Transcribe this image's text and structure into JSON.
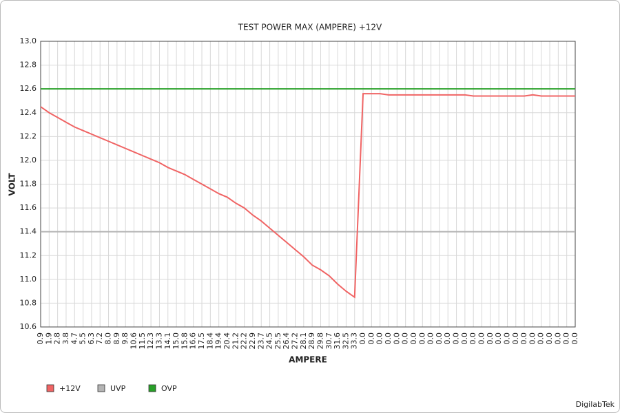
{
  "chart_data": {
    "type": "line",
    "title": "TEST POWER MAX (AMPERE) +12V",
    "x_label": "AMPERE",
    "y_label": "VOLT",
    "watermark": "DigilabTek",
    "categories": [
      "0.9",
      "1.9",
      "2.8",
      "3.8",
      "4.7",
      "5.5",
      "6.3",
      "7.2",
      "8.0",
      "8.9",
      "9.8",
      "10.6",
      "11.5",
      "12.3",
      "13.3",
      "14.1",
      "15.0",
      "15.8",
      "16.6",
      "17.5",
      "18.4",
      "19.4",
      "20.4",
      "21.2",
      "22.2",
      "22.9",
      "23.7",
      "24.5",
      "25.5",
      "26.4",
      "27.2",
      "28.1",
      "28.9",
      "29.8",
      "30.7",
      "31.6",
      "32.5",
      "33.3",
      "0.0",
      "0.0",
      "0.0",
      "0.0",
      "0.0",
      "0.0",
      "0.0",
      "0.0",
      "0.0",
      "0.0",
      "0.0",
      "0.0",
      "0.0",
      "0.0",
      "0.0",
      "0.0",
      "0.0",
      "0.0",
      "0.0",
      "0.0",
      "0.0",
      "0.0",
      "0.0",
      "0.0",
      "0.0",
      "0.0"
    ],
    "series": [
      {
        "name": "+12V",
        "color": "#f06464",
        "values": [
          12.45,
          12.4,
          12.36,
          12.32,
          12.28,
          12.25,
          12.22,
          12.19,
          12.16,
          12.13,
          12.1,
          12.07,
          12.04,
          12.01,
          11.98,
          11.94,
          11.91,
          11.88,
          11.84,
          11.8,
          11.76,
          11.72,
          11.69,
          11.64,
          11.6,
          11.54,
          11.49,
          11.43,
          11.37,
          11.31,
          11.25,
          11.19,
          11.12,
          11.08,
          11.03,
          10.96,
          10.9,
          10.85,
          12.56,
          12.56,
          12.56,
          12.55,
          12.55,
          12.55,
          12.55,
          12.55,
          12.55,
          12.55,
          12.55,
          12.55,
          12.55,
          12.54,
          12.54,
          12.54,
          12.54,
          12.54,
          12.54,
          12.54,
          12.55,
          12.54,
          12.54,
          12.54,
          12.54,
          12.54
        ]
      },
      {
        "name": "UVP",
        "color": "#b4b4b4",
        "values": [
          11.4,
          11.4,
          11.4,
          11.4,
          11.4,
          11.4,
          11.4,
          11.4,
          11.4,
          11.4,
          11.4,
          11.4,
          11.4,
          11.4,
          11.4,
          11.4,
          11.4,
          11.4,
          11.4,
          11.4,
          11.4,
          11.4,
          11.4,
          11.4,
          11.4,
          11.4,
          11.4,
          11.4,
          11.4,
          11.4,
          11.4,
          11.4,
          11.4,
          11.4,
          11.4,
          11.4,
          11.4,
          11.4,
          11.4,
          11.4,
          11.4,
          11.4,
          11.4,
          11.4,
          11.4,
          11.4,
          11.4,
          11.4,
          11.4,
          11.4,
          11.4,
          11.4,
          11.4,
          11.4,
          11.4,
          11.4,
          11.4,
          11.4,
          11.4,
          11.4,
          11.4,
          11.4,
          11.4,
          11.4
        ]
      },
      {
        "name": "OVP",
        "color": "#28a028",
        "values": [
          12.6,
          12.6,
          12.6,
          12.6,
          12.6,
          12.6,
          12.6,
          12.6,
          12.6,
          12.6,
          12.6,
          12.6,
          12.6,
          12.6,
          12.6,
          12.6,
          12.6,
          12.6,
          12.6,
          12.6,
          12.6,
          12.6,
          12.6,
          12.6,
          12.6,
          12.6,
          12.6,
          12.6,
          12.6,
          12.6,
          12.6,
          12.6,
          12.6,
          12.6,
          12.6,
          12.6,
          12.6,
          12.6,
          12.6,
          12.6,
          12.6,
          12.6,
          12.6,
          12.6,
          12.6,
          12.6,
          12.6,
          12.6,
          12.6,
          12.6,
          12.6,
          12.6,
          12.6,
          12.6,
          12.6,
          12.6,
          12.6,
          12.6,
          12.6,
          12.6,
          12.6,
          12.6,
          12.6,
          12.6
        ]
      }
    ],
    "ylim": [
      10.6,
      13.0
    ],
    "yticks": [
      10.6,
      10.8,
      {
        "value": 11.0,
        "label": "11.0"
      },
      11.2,
      11.4,
      11.6,
      11.8,
      {
        "value": 12.0,
        "label": "12.0"
      },
      12.2,
      12.4,
      12.6,
      12.8,
      {
        "value": 13.0,
        "label": "13.0"
      }
    ],
    "grid": true
  }
}
